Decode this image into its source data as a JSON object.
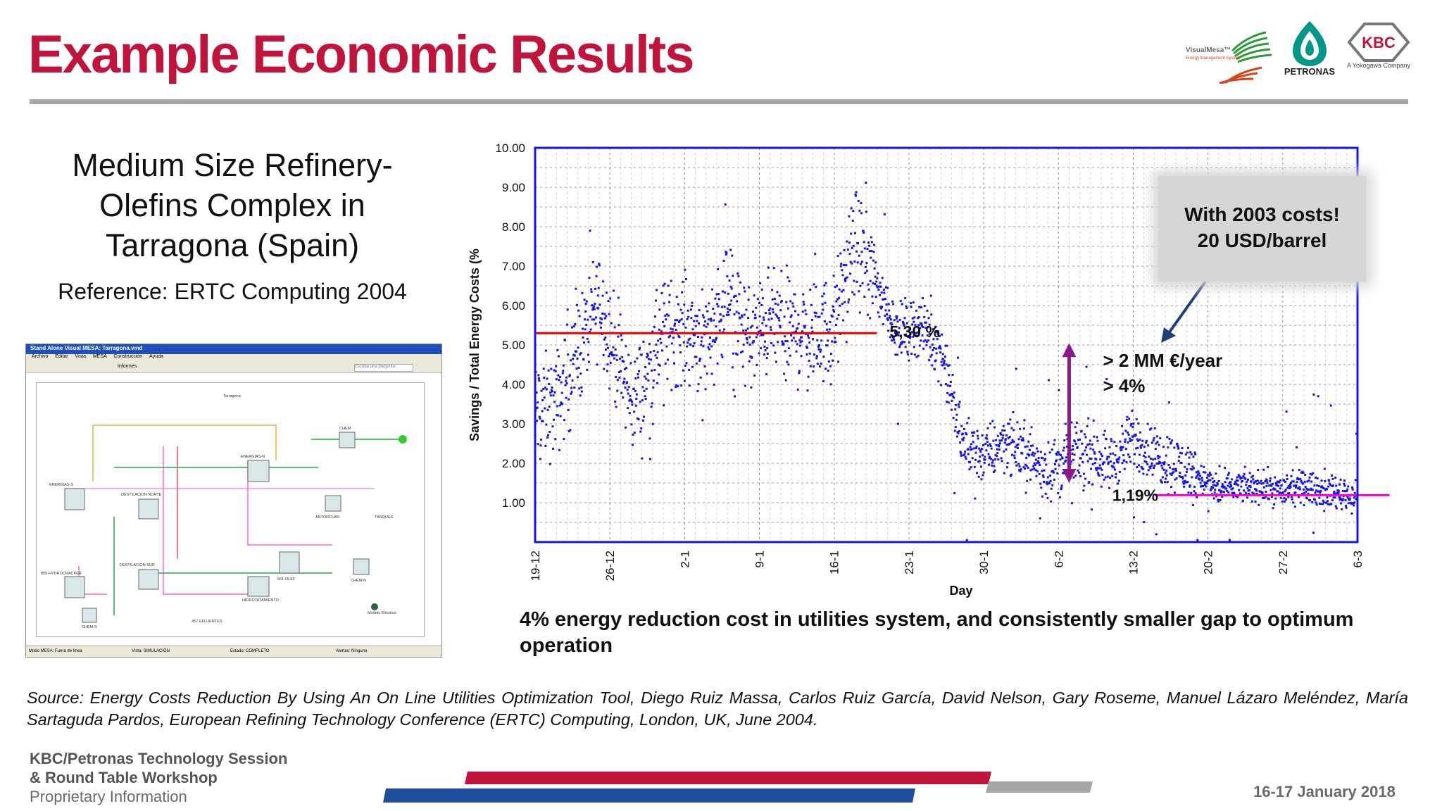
{
  "slide": {
    "title": "Example Economic Results",
    "subtitle": "Medium Size Refinery-Olefins Complex in Tarragona (Spain)",
    "reference": "Reference: ERTC Computing 2004",
    "caption": "4% energy reduction cost in utilities system, and consistently smaller gap to optimum operation",
    "source": "Source: Energy Costs Reduction By Using An On Line Utilities Optimization Tool, Diego Ruiz Massa, Carlos Ruiz García, David Nelson, Gary Roseme, Manuel Lázaro Meléndez, María Sartaguda Pardos, European Refining Technology Conference (ERTC) Computing, London, UK, June 2004.",
    "footer_line1": "KBC/Petronas Technology Session",
    "footer_line2": "& Round Table Workshop",
    "footer_line3": "Proprietary Information",
    "footer_date": "16-17 January 2018",
    "accent_color": "#c0143c"
  },
  "logos": {
    "visualmesa": "VisualMesa™",
    "visualmesa_sub": "Energy Management System",
    "petronas": "PETRONAS",
    "kbc": "KBC",
    "kbc_sub": "A Yokogawa Company"
  },
  "thumbnail": {
    "window_title": "Stand Alone Visual MESA: Tarragona.vmd",
    "menu": [
      "Archivo",
      "Editar",
      "Vista",
      "MESA",
      "Construcción",
      "Ayuda"
    ],
    "search_placeholder": "Escriba una pregunta",
    "toolbar_informes": "Informes",
    "units": [
      "ENERGIAS-S",
      "DESTILACION NORTE",
      "ENERGIAS-N",
      "CHEM",
      "ANTORCHAS",
      "TANQUES",
      "855-HYDROCRACKER",
      "661-OLEF",
      "CHEM-N",
      "DESTILACION SUR",
      "HIDROTATAMIENTO",
      "CHEM-S",
      "457-EFLUENTES",
      "Modelo Eléctrico",
      "Tarragona"
    ],
    "status": [
      "Modo MESA: Fuera de línea",
      "Vista: SIMULACIÓN",
      "Estado: COMPLETO",
      "Alertas: Ninguna"
    ]
  },
  "chart_data": {
    "type": "scatter",
    "title": "",
    "xlabel": "Day",
    "ylabel": "Savings / Total Energy Costs (%",
    "ylim": [
      0,
      10
    ],
    "y_ticks": [
      "10.00",
      "9.00",
      "8.00",
      "7.00",
      "6.00",
      "5.00",
      "4.00",
      "3.00",
      "2.00",
      "1.00"
    ],
    "x_ticks": [
      "19-12",
      "26-12",
      "2-1",
      "9-1",
      "16-1",
      "23-1",
      "30-1",
      "6-2",
      "13-2",
      "20-2",
      "27-2",
      "6-3"
    ],
    "grid": true,
    "point_color": "#1414e6",
    "series": [
      {
        "x_days": [
          0,
          2,
          4,
          6,
          8,
          9,
          10,
          11,
          12,
          14,
          16,
          18,
          20,
          22,
          24,
          26,
          28,
          30,
          32,
          34,
          36,
          38,
          40,
          42,
          44,
          46,
          48,
          50,
          52,
          54,
          56,
          58,
          60,
          62,
          64,
          66,
          68,
          70,
          72,
          74,
          76,
          78,
          80
        ],
        "y_mean": [
          3.3,
          3.5,
          4.8,
          6.2,
          4.4,
          3.6,
          3.8,
          4.6,
          5.3,
          5.4,
          5.1,
          6.3,
          5.1,
          5.6,
          5.4,
          5.2,
          5.5,
          7.6,
          6.5,
          5.3,
          5.5,
          4.9,
          2.5,
          2.2,
          2.6,
          2.2,
          1.8,
          2.2,
          2.3,
          2.0,
          2.6,
          2.2,
          2.0,
          1.7,
          1.3,
          1.4,
          1.4,
          1.3,
          1.4,
          1.3,
          1.2,
          1.0,
          0.8
        ]
      }
    ],
    "reference_lines": [
      {
        "label": "5,30 %",
        "value": 5.3,
        "from_day": 0,
        "to_day": 32,
        "color": "#e60000"
      },
      {
        "label": "1,19%",
        "value": 1.19,
        "from_day": 58,
        "to_day": 80,
        "color": "#ff00cc"
      }
    ],
    "annotations": [
      {
        "text": "> 2 MM €/year"
      },
      {
        "text": "> 4%"
      }
    ],
    "callout_line1": "With 2003 costs!",
    "callout_line2": "20 USD/barrel"
  }
}
